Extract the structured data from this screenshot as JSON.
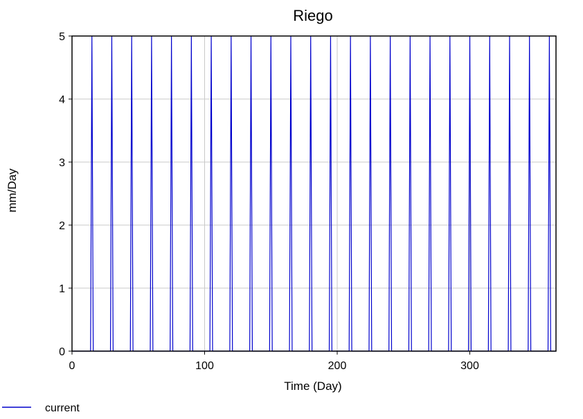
{
  "chart_data": {
    "type": "line",
    "title": "Riego",
    "xlabel": "Time (Day)",
    "ylabel": "mm/Day",
    "xlim": [
      0,
      365
    ],
    "ylim": [
      0,
      5
    ],
    "x_ticks": [
      0,
      100,
      200,
      300
    ],
    "y_ticks": [
      0,
      1,
      2,
      3,
      4,
      5
    ],
    "grid": true,
    "legend_position": "bottom-left",
    "series": [
      {
        "name": "current",
        "color": "#0000cc",
        "description": "pulse of 5 mm/Day for one day every 15 days, otherwise 0",
        "pulse_days": [
          15,
          30,
          45,
          60,
          75,
          90,
          105,
          120,
          135,
          150,
          165,
          180,
          195,
          210,
          225,
          240,
          255,
          270,
          285,
          300,
          315,
          330,
          345,
          360
        ],
        "pulse_value": 5,
        "base_value": 0
      }
    ]
  }
}
